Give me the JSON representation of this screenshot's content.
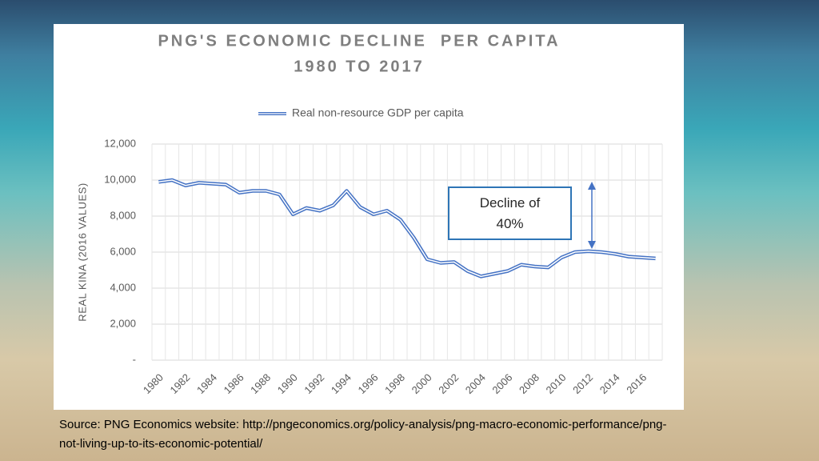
{
  "chart_data": {
    "type": "line",
    "title": "PNG'S ECONOMIC DECLINE  PER CAPITA",
    "subtitle": "1980 TO 2017",
    "y_label": "REAL KINA (2016 VALUES)",
    "annotation": "Decline of 40%",
    "source": "Source: PNG Economics website: http://pngeconomics.org/policy-analysis/png-macro-economic-performance/png-not-living-up-to-its-economic-potential/",
    "categories": [
      "1980",
      null,
      "1982",
      null,
      "1984",
      null,
      "1986",
      null,
      "1988",
      null,
      "1990",
      null,
      "1992",
      null,
      "1994",
      null,
      "1996",
      null,
      "1998",
      null,
      "2000",
      null,
      "2002",
      null,
      "2004",
      null,
      "2006",
      null,
      "2008",
      null,
      "2010",
      null,
      "2012",
      null,
      "2014",
      null,
      "2016",
      null
    ],
    "series": [
      {
        "name": "Real non-resource GDP per capita",
        "color": "#4472c4",
        "values": [
          9900,
          10000,
          9700,
          9850,
          9800,
          9750,
          9300,
          9400,
          9400,
          9200,
          8100,
          8450,
          8300,
          8600,
          9400,
          8500,
          8100,
          8300,
          7800,
          6800,
          5600,
          5400,
          5450,
          4950,
          4650,
          4800,
          4950,
          5300,
          5200,
          5150,
          5700,
          6000,
          6050,
          6000,
          5900,
          5750,
          5700,
          5650
        ]
      }
    ],
    "ylim": [
      0,
      12000
    ],
    "yticks": [
      {
        "value": 0,
        "label": "-"
      },
      {
        "value": 2000,
        "label": "2,000"
      },
      {
        "value": 4000,
        "label": "4,000"
      },
      {
        "value": 6000,
        "label": "6,000"
      },
      {
        "value": 8000,
        "label": "8,000"
      },
      {
        "value": 10000,
        "label": "10,000"
      },
      {
        "value": 12000,
        "label": "12,000"
      }
    ],
    "grid": true,
    "legend": "top"
  }
}
